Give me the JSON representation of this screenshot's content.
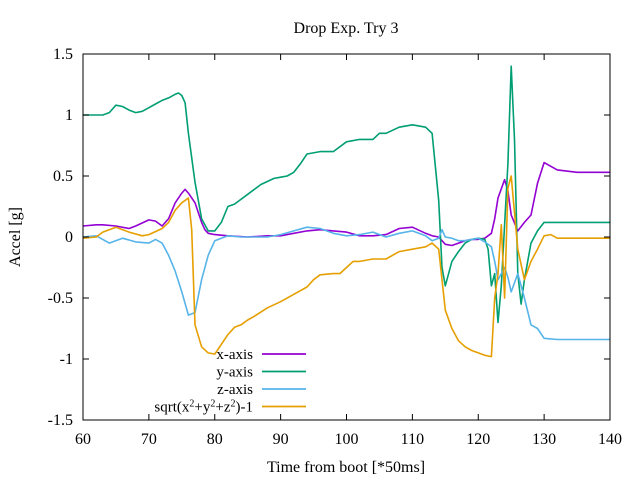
{
  "chart_data": {
    "type": "line",
    "title": "Drop Exp. Try 3",
    "xlabel": "Time from boot [*50ms]",
    "ylabel": "Accel [g]",
    "xlim": [
      60,
      140
    ],
    "ylim": [
      -1.5,
      1.5
    ],
    "xticks": [
      60,
      70,
      80,
      90,
      100,
      110,
      120,
      130,
      140
    ],
    "xtick_labels": [
      "60",
      "70",
      "80",
      "90",
      "100",
      "110",
      "120",
      "130",
      "140"
    ],
    "yticks": [
      -1.5,
      -1,
      -0.5,
      0,
      0.5,
      1,
      1.5
    ],
    "ytick_labels": [
      "-1.5",
      "-1",
      "-0.5",
      "0",
      "0.5",
      "1",
      "1.5"
    ],
    "grid": false,
    "legend_position": "bottom-left",
    "series": [
      {
        "name": "x-axis",
        "color": "#9400d3",
        "x": [
          60,
          62,
          63,
          65,
          67,
          68,
          70,
          71,
          72,
          73,
          74,
          75,
          75.5,
          76,
          77,
          78,
          78.5,
          79,
          80,
          82,
          85,
          88,
          90,
          92,
          94,
          96,
          98,
          100,
          102,
          104,
          106,
          108,
          110,
          112,
          113,
          114,
          115,
          116,
          117,
          118,
          119,
          120,
          121,
          122,
          122.5,
          123,
          124,
          124.5,
          125,
          126,
          127,
          128,
          129,
          130,
          132,
          135,
          140
        ],
        "y": [
          0.09,
          0.1,
          0.1,
          0.09,
          0.07,
          0.09,
          0.14,
          0.13,
          0.09,
          0.15,
          0.28,
          0.36,
          0.39,
          0.36,
          0.28,
          0.12,
          0.06,
          0.03,
          0.02,
          0.01,
          0.0,
          0.01,
          0.01,
          0.03,
          0.05,
          0.06,
          0.05,
          0.04,
          0.01,
          0.01,
          0.02,
          0.07,
          0.08,
          0.03,
          0.01,
          0.0,
          -0.06,
          -0.07,
          -0.05,
          -0.03,
          -0.02,
          -0.02,
          -0.01,
          0.03,
          0.15,
          0.32,
          0.47,
          0.38,
          0.18,
          0.05,
          0.12,
          0.18,
          0.44,
          0.61,
          0.55,
          0.53,
          0.53
        ]
      },
      {
        "name": "y-axis",
        "color": "#009e73",
        "x": [
          60,
          63,
          64,
          65,
          66,
          67,
          68,
          69,
          70,
          71,
          72,
          73,
          74,
          74.5,
          75,
          75.5,
          76,
          77,
          78,
          79,
          80,
          81,
          82,
          83,
          85,
          87,
          89,
          90,
          91,
          92,
          93,
          94,
          96,
          98,
          100,
          102,
          104,
          105,
          106,
          108,
          110,
          112,
          113,
          114,
          114.5,
          115,
          116,
          117,
          118,
          119,
          120,
          121,
          121.5,
          122,
          122.5,
          123,
          123.5,
          124,
          124.5,
          125,
          125.5,
          126,
          126.5,
          127,
          128,
          129,
          130,
          132,
          135,
          140
        ],
        "y": [
          1.0,
          1.0,
          1.02,
          1.08,
          1.07,
          1.04,
          1.02,
          1.03,
          1.06,
          1.09,
          1.12,
          1.14,
          1.17,
          1.18,
          1.16,
          1.1,
          0.85,
          0.45,
          0.15,
          0.05,
          0.05,
          0.12,
          0.25,
          0.27,
          0.35,
          0.43,
          0.48,
          0.49,
          0.5,
          0.53,
          0.6,
          0.68,
          0.7,
          0.7,
          0.78,
          0.8,
          0.8,
          0.85,
          0.85,
          0.9,
          0.92,
          0.9,
          0.85,
          0.3,
          -0.25,
          -0.4,
          -0.2,
          -0.12,
          -0.05,
          -0.02,
          -0.01,
          -0.02,
          -0.1,
          -0.4,
          -0.3,
          -0.7,
          -0.4,
          0.1,
          0.6,
          1.4,
          0.8,
          -0.3,
          -0.55,
          -0.35,
          -0.05,
          0.05,
          0.12,
          0.12,
          0.12,
          0.12
        ]
      },
      {
        "name": "z-axis",
        "color": "#56b4e9",
        "x": [
          60,
          62,
          64,
          66,
          68,
          70,
          71,
          72,
          73,
          74,
          75,
          76,
          77,
          78,
          79,
          80,
          82,
          84,
          86,
          88,
          90,
          92,
          94,
          96,
          98,
          100,
          102,
          104,
          106,
          108,
          110,
          112,
          113,
          114,
          114.5,
          115,
          116,
          117,
          118,
          120,
          121,
          122,
          122.5,
          123,
          124,
          124.5,
          125,
          126,
          127,
          128,
          129,
          130,
          132,
          135,
          140
        ],
        "y": [
          0.0,
          0.01,
          -0.05,
          -0.01,
          -0.04,
          -0.05,
          -0.02,
          -0.05,
          -0.15,
          -0.28,
          -0.45,
          -0.64,
          -0.62,
          -0.35,
          -0.15,
          -0.03,
          0.01,
          0.0,
          0.0,
          0.0,
          0.02,
          0.05,
          0.08,
          0.07,
          0.03,
          0.01,
          0.02,
          0.04,
          0.0,
          0.03,
          0.05,
          0.01,
          -0.03,
          -0.01,
          0.06,
          0.0,
          -0.01,
          -0.03,
          -0.03,
          -0.01,
          -0.04,
          -0.08,
          -0.2,
          -0.35,
          -0.25,
          -0.33,
          -0.45,
          -0.3,
          -0.5,
          -0.72,
          -0.75,
          -0.83,
          -0.84,
          -0.84,
          -0.84
        ]
      },
      {
        "name": "sqrt(x2+y2+z2)-1",
        "name_parts": {
          "base": "sqrt(x",
          "sup1": "2",
          "mid1": "+y",
          "sup2": "2",
          "mid2": "+z",
          "sup3": "2",
          "tail": ")-1"
        },
        "color": "#e69f00",
        "x": [
          60,
          62,
          63,
          65,
          67,
          69,
          70,
          72,
          73,
          74,
          75,
          76,
          76.5,
          77,
          78,
          79,
          80,
          81,
          82,
          83,
          84,
          85,
          86,
          88,
          90,
          92,
          94,
          95,
          96,
          98,
          99,
          100,
          101,
          102,
          104,
          106,
          108,
          110,
          112,
          113,
          114,
          114.5,
          115,
          116,
          117,
          118,
          119,
          120,
          121,
          122,
          122.5,
          123,
          123.5,
          124,
          124.5,
          125,
          126,
          127,
          128,
          129,
          130,
          131,
          132,
          135,
          140
        ],
        "y": [
          -0.01,
          0.0,
          0.04,
          0.08,
          0.04,
          0.01,
          0.02,
          0.07,
          0.12,
          0.22,
          0.28,
          0.32,
          0.06,
          -0.72,
          -0.9,
          -0.95,
          -0.96,
          -0.88,
          -0.8,
          -0.74,
          -0.72,
          -0.68,
          -0.65,
          -0.58,
          -0.53,
          -0.47,
          -0.41,
          -0.35,
          -0.31,
          -0.3,
          -0.3,
          -0.25,
          -0.2,
          -0.2,
          -0.18,
          -0.18,
          -0.12,
          -0.1,
          -0.08,
          -0.05,
          -0.1,
          -0.35,
          -0.6,
          -0.75,
          -0.85,
          -0.9,
          -0.93,
          -0.95,
          -0.97,
          -0.98,
          -0.5,
          -0.3,
          0.1,
          -0.5,
          0.4,
          0.5,
          -0.1,
          -0.35,
          -0.2,
          -0.1,
          0.01,
          0.02,
          -0.01,
          -0.01,
          -0.01
        ]
      }
    ]
  }
}
